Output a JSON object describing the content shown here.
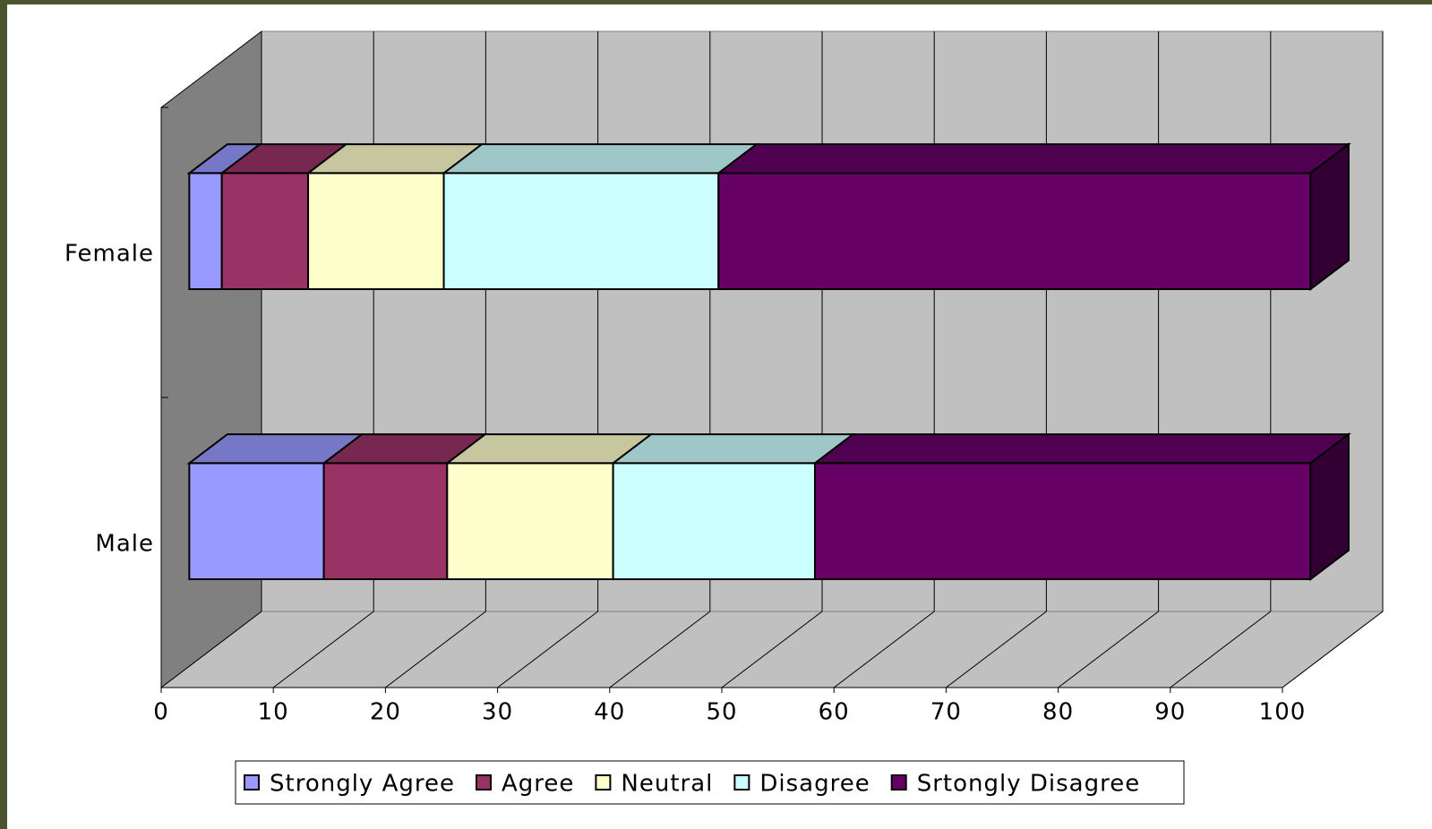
{
  "chart_data": {
    "type": "stacked_bar_3d_horizontal",
    "categories": [
      "Female",
      "Male"
    ],
    "series": [
      {
        "name": "Strongly Agree",
        "color": "#9999ff",
        "values": [
          2.9,
          12
        ]
      },
      {
        "name": "Agree",
        "color": "#993366",
        "values": [
          7.7,
          11
        ]
      },
      {
        "name": "Neutral",
        "color": "#ffffcc",
        "values": [
          12.1,
          14.8
        ]
      },
      {
        "name": "Disagree",
        "color": "#ccffff",
        "values": [
          24.5,
          18
        ]
      },
      {
        "name": "Srtongly Disagree",
        "color": "#660066",
        "values": [
          52.8,
          44.2
        ]
      }
    ],
    "xlim": [
      0,
      100
    ],
    "xticks": [
      0,
      10,
      20,
      30,
      40,
      50,
      60,
      70,
      80,
      90,
      100
    ],
    "grid": true,
    "legend": "bottom"
  }
}
